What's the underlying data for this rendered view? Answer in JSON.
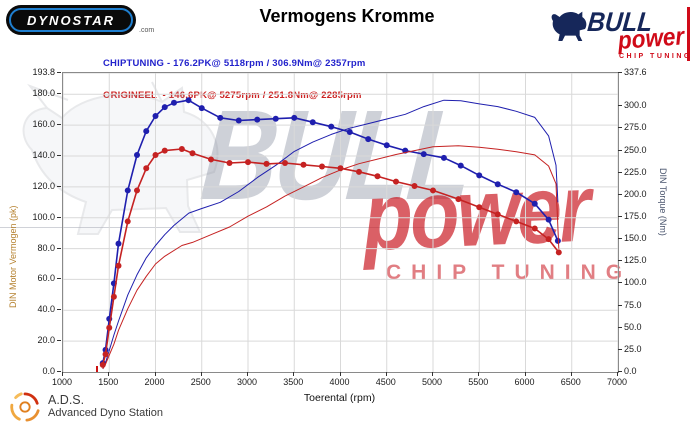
{
  "header": {
    "title": "Vermogens Kromme",
    "dynostar": {
      "text": "DYNOSTAR",
      "suffix": ".com"
    },
    "bullpower": {
      "word1": "BULL",
      "word2": "power",
      "word3": "CHIP TUNING"
    }
  },
  "legend": {
    "chiptuning": "CHIPTUNING - 176.2PK@ 5118rpm / 306.9Nm@ 2357rpm",
    "origineel": "ORIGINEEL  - 146.6PK@ 5275rpm / 251.8Nm@ 2285rpm",
    "chiptuning_color": "#2222cc",
    "origineel_color": "#cc2222"
  },
  "watermark": {
    "word1": "BULL",
    "word2": "power",
    "word3": "CHIP TUNING"
  },
  "footer": {
    "abbr": "A.D.S.",
    "name": "Advanced Dyno Station"
  },
  "chart_data": {
    "type": "line",
    "title": "Vermogens Kromme",
    "xlabel": "Toerental (rpm)",
    "ylabel_left": "DIN Motor Vermogen (pk)",
    "ylabel_right": "DIN Torque (Nm)",
    "x_range": [
      1000,
      7000
    ],
    "y_left_range": [
      0,
      193.8
    ],
    "y_right_range": [
      0,
      337.6
    ],
    "x_ticks": [
      1000,
      1500,
      2000,
      2500,
      3000,
      3500,
      4000,
      4500,
      5000,
      5500,
      6000,
      6500,
      7000
    ],
    "y_left_ticks": [
      0,
      20,
      40,
      60,
      80,
      100,
      120,
      140,
      160,
      180,
      193.8
    ],
    "y_right_ticks": [
      0,
      25,
      50,
      75,
      100,
      125,
      150,
      175,
      200,
      225,
      250,
      275,
      300,
      337.6
    ],
    "grid": true,
    "legend_position": "top",
    "run_start_rpm": 1370,
    "peaks": {
      "chiptuning": {
        "power_pk": 176.2,
        "power_rpm": 5118,
        "torque_nm": 306.9,
        "torque_rpm": 2357
      },
      "origineel": {
        "power_pk": 146.6,
        "power_rpm": 5275,
        "torque_nm": 251.8,
        "torque_rpm": 2285
      }
    },
    "series": [
      {
        "name": "CHIPTUNING vermogen (pk)",
        "axis": "left",
        "color": "#1f1fae",
        "markers": false,
        "width": 1,
        "points": [
          [
            1430,
            2
          ],
          [
            1460,
            6
          ],
          [
            1500,
            14
          ],
          [
            1550,
            24
          ],
          [
            1600,
            33
          ],
          [
            1700,
            50
          ],
          [
            1800,
            63
          ],
          [
            1900,
            74
          ],
          [
            2000,
            82
          ],
          [
            2100,
            89
          ],
          [
            2200,
            95
          ],
          [
            2360,
            103
          ],
          [
            2500,
            106
          ],
          [
            2700,
            110
          ],
          [
            2900,
            117
          ],
          [
            3100,
            126
          ],
          [
            3300,
            134
          ],
          [
            3500,
            143
          ],
          [
            3700,
            149
          ],
          [
            3900,
            154
          ],
          [
            4100,
            158
          ],
          [
            4300,
            161
          ],
          [
            4500,
            164
          ],
          [
            4700,
            167
          ],
          [
            4900,
            172
          ],
          [
            5118,
            176.2
          ],
          [
            5300,
            175.8
          ],
          [
            5500,
            173.8
          ],
          [
            5700,
            172
          ],
          [
            5900,
            169
          ],
          [
            6100,
            165
          ],
          [
            6250,
            153
          ],
          [
            6330,
            134
          ],
          [
            6350,
            110
          ]
        ]
      },
      {
        "name": "CHIPTUNING koppel (Nm)",
        "axis": "right",
        "color": "#1f1fae",
        "markers": true,
        "width": 1.6,
        "points": [
          [
            1430,
            10
          ],
          [
            1460,
            25
          ],
          [
            1500,
            60
          ],
          [
            1550,
            100
          ],
          [
            1600,
            145
          ],
          [
            1700,
            205
          ],
          [
            1800,
            245
          ],
          [
            1900,
            272
          ],
          [
            2000,
            289
          ],
          [
            2100,
            299
          ],
          [
            2200,
            304
          ],
          [
            2357,
            306.9
          ],
          [
            2500,
            298
          ],
          [
            2700,
            287
          ],
          [
            2900,
            284
          ],
          [
            3100,
            285
          ],
          [
            3300,
            286
          ],
          [
            3500,
            287
          ],
          [
            3700,
            282
          ],
          [
            3900,
            277
          ],
          [
            4100,
            271
          ],
          [
            4300,
            263
          ],
          [
            4500,
            256
          ],
          [
            4700,
            250
          ],
          [
            4900,
            246
          ],
          [
            5118,
            241.8
          ],
          [
            5300,
            233
          ],
          [
            5500,
            222
          ],
          [
            5700,
            212
          ],
          [
            5900,
            203
          ],
          [
            6100,
            190
          ],
          [
            6250,
            172
          ],
          [
            6350,
            148
          ]
        ]
      },
      {
        "name": "ORIGINEEL vermogen (pk)",
        "axis": "left",
        "color": "#c52222",
        "markers": false,
        "width": 1,
        "points": [
          [
            1430,
            2
          ],
          [
            1460,
            5
          ],
          [
            1500,
            11
          ],
          [
            1550,
            18
          ],
          [
            1600,
            27
          ],
          [
            1700,
            41
          ],
          [
            1800,
            53
          ],
          [
            1900,
            62
          ],
          [
            2000,
            70
          ],
          [
            2100,
            75
          ],
          [
            2285,
            82
          ],
          [
            2400,
            84
          ],
          [
            2600,
            89
          ],
          [
            2800,
            94
          ],
          [
            3000,
            101
          ],
          [
            3200,
            107
          ],
          [
            3400,
            114
          ],
          [
            3600,
            120
          ],
          [
            3800,
            126
          ],
          [
            4000,
            131
          ],
          [
            4200,
            135
          ],
          [
            4400,
            138
          ],
          [
            4600,
            141
          ],
          [
            4800,
            143.5
          ],
          [
            5000,
            146
          ],
          [
            5275,
            146.6
          ],
          [
            5500,
            145.7
          ],
          [
            5700,
            144.4
          ],
          [
            5900,
            142.8
          ],
          [
            6100,
            140.7
          ],
          [
            6250,
            133.5
          ],
          [
            6330,
            122
          ],
          [
            6360,
            80
          ]
        ]
      },
      {
        "name": "ORIGINEEL koppel (Nm)",
        "axis": "right",
        "color": "#c52222",
        "markers": true,
        "width": 1.6,
        "points": [
          [
            1430,
            8
          ],
          [
            1460,
            20
          ],
          [
            1500,
            50
          ],
          [
            1550,
            85
          ],
          [
            1600,
            120
          ],
          [
            1700,
            170
          ],
          [
            1800,
            205
          ],
          [
            1900,
            230
          ],
          [
            2000,
            245
          ],
          [
            2100,
            250
          ],
          [
            2285,
            251.8
          ],
          [
            2400,
            247
          ],
          [
            2600,
            240
          ],
          [
            2800,
            236
          ],
          [
            3000,
            237
          ],
          [
            3200,
            235
          ],
          [
            3400,
            236
          ],
          [
            3600,
            234
          ],
          [
            3800,
            232
          ],
          [
            4000,
            230
          ],
          [
            4200,
            226
          ],
          [
            4400,
            221
          ],
          [
            4600,
            215
          ],
          [
            4800,
            210
          ],
          [
            5000,
            205
          ],
          [
            5275,
            195.2
          ],
          [
            5500,
            186
          ],
          [
            5700,
            178
          ],
          [
            5900,
            170
          ],
          [
            6100,
            162
          ],
          [
            6250,
            150
          ],
          [
            6360,
            135
          ]
        ]
      }
    ]
  }
}
